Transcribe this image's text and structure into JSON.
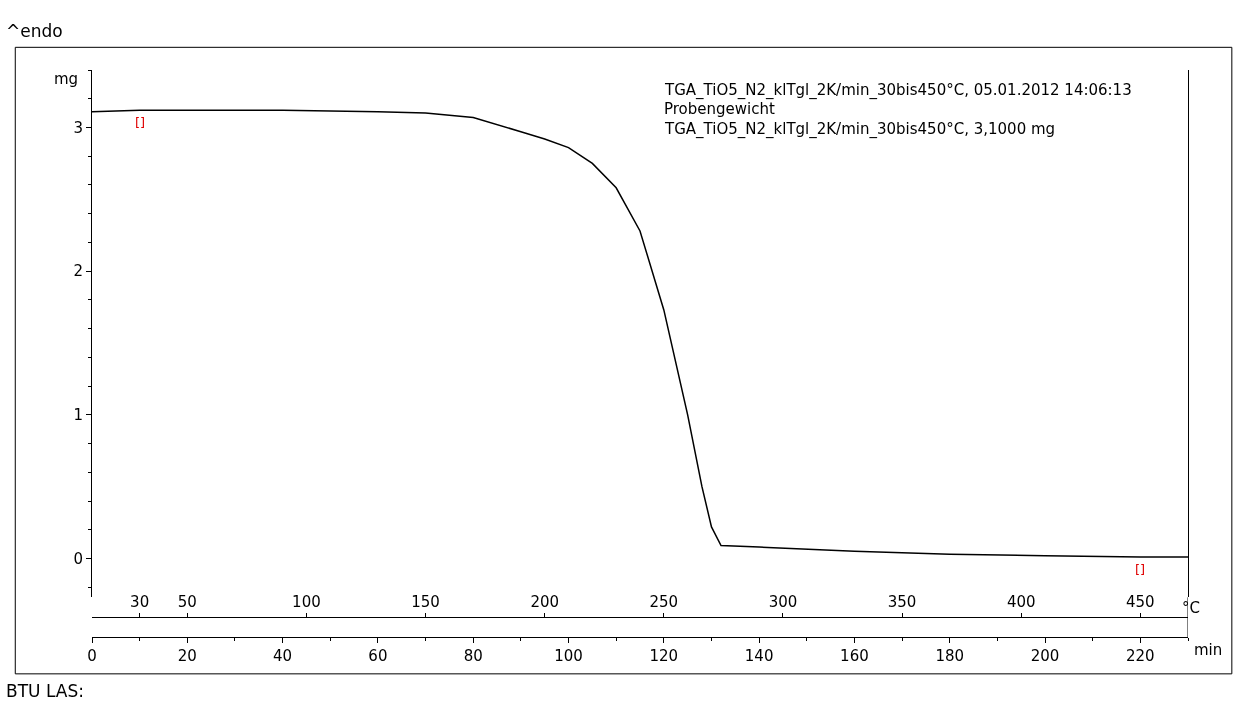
{
  "chart_data": {
    "type": "line",
    "xlabel": "min",
    "x2label": "°C",
    "ylabel": "mg",
    "x": [
      0,
      10,
      20,
      40,
      60,
      70,
      80,
      90,
      95,
      100,
      105,
      110,
      115,
      120,
      125,
      128,
      130,
      132,
      140,
      160,
      180,
      200,
      220,
      230
    ],
    "series": [
      {
        "color": "#000000",
        "values": [
          3.11,
          3.12,
          3.12,
          3.12,
          3.11,
          3.1,
          3.07,
          2.97,
          2.92,
          2.86,
          2.75,
          2.58,
          2.28,
          1.73,
          1.0,
          0.5,
          0.22,
          0.09,
          0.08,
          0.05,
          0.03,
          0.02,
          0.01,
          0.01
        ]
      }
    ],
    "xlim": [
      0,
      230
    ],
    "xticks": [
      0,
      20,
      40,
      60,
      80,
      100,
      120,
      140,
      160,
      180,
      200,
      220
    ],
    "x2lim": [
      10,
      470
    ],
    "x2ticks": [
      30,
      50,
      100,
      150,
      200,
      250,
      300,
      350,
      400,
      450
    ],
    "ylim": [
      -0.27,
      3.4
    ],
    "yticks": [
      0,
      1,
      2,
      3
    ],
    "marker": "none",
    "line_style": "solid",
    "annotations": [
      "TGA_TiO5_N2_klTgl_2K/min_30bis450°C, 05.01.2012 14:06:13",
      "Probengewicht",
      "TGA_TiO5_N2_klTgl_2K/min_30bis450°C, 3,1000 mg",
      "^endo",
      "BTU LAS:",
      {
        "text": "[]",
        "x": 10,
        "y": 3.12
      },
      {
        "text": "[]",
        "x": 220,
        "y": 0.01
      }
    ]
  }
}
